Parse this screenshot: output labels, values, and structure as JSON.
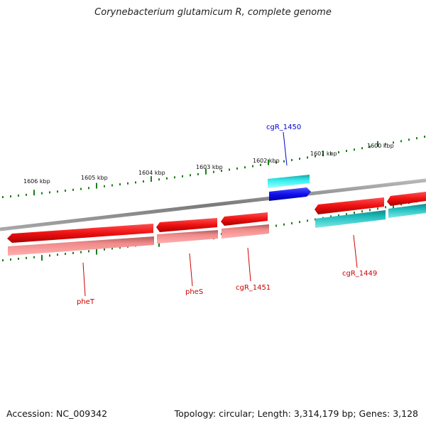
{
  "title": "Corynebacterium glutamicum R, complete genome",
  "footer": {
    "accession_label": "Accession:",
    "accession": "NC_009342",
    "topology_text": "Topology: circular; Length: 3,314,179 bp; Genes: 3,128"
  },
  "kbp_labels": [
    "1606 kbp",
    "1605 kbp",
    "1604 kbp",
    "1603 kbp",
    "1602 kbp",
    "1601 kbp",
    "1600 kbp"
  ],
  "gene_labels": [
    "cgR_1450",
    "pheT",
    "pheS",
    "cgR_1451",
    "cgR_1449"
  ],
  "colors": {
    "backbone": "#8c8c8c",
    "ticks": "#1a7f1a",
    "gene_red": "#ee1111",
    "gene_pink": "#f08a8a",
    "gene_cyan": "#22d8d8",
    "gene_teal": "#22b8b8",
    "gene_blue": "#1010ee",
    "label_red": "#cc0000",
    "label_blue": "#0000cc"
  }
}
